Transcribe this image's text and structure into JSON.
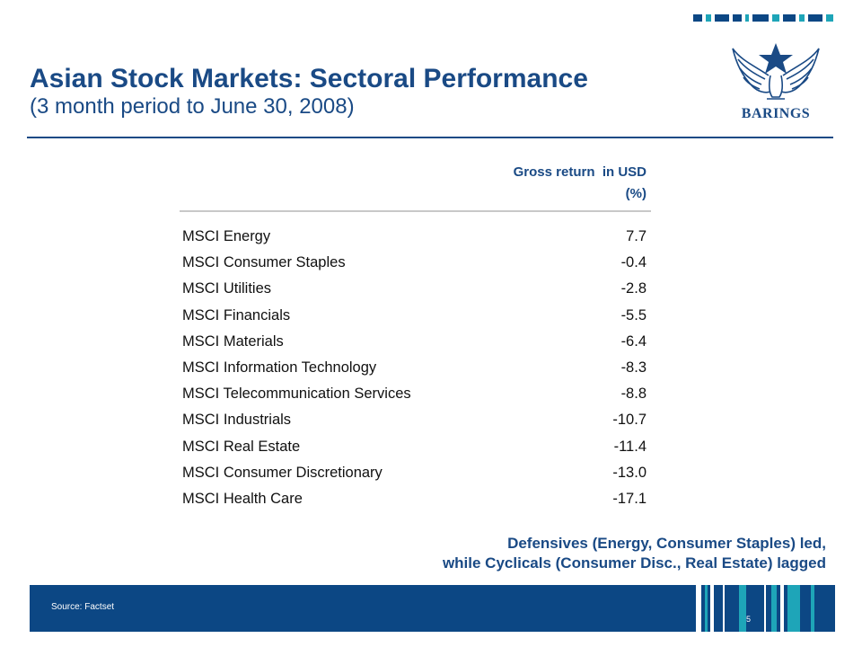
{
  "slide": {
    "title": "Asian Stock Markets: Sectoral Performance",
    "subtitle": "(3 month period to June 30, 2008)",
    "page_number": "5"
  },
  "logo": {
    "icon": "barings-eagle-star-crest-icon",
    "text": "BARINGS"
  },
  "table": {
    "header_line1": "Gross return  in USD",
    "header_line2": "(%)",
    "rows": [
      {
        "sector": "MSCI Energy",
        "value": "7.7"
      },
      {
        "sector": "MSCI Consumer Staples",
        "value": "-0.4"
      },
      {
        "sector": "MSCI Utilities",
        "value": "-2.8"
      },
      {
        "sector": "MSCI Financials",
        "value": "-5.5"
      },
      {
        "sector": "MSCI Materials",
        "value": "-6.4"
      },
      {
        "sector": "MSCI Information Technology",
        "value": "-8.3"
      },
      {
        "sector": "MSCI Telecommunication Services",
        "value": "-8.8"
      },
      {
        "sector": "MSCI Industrials",
        "value": "-10.7"
      },
      {
        "sector": "MSCI Real Estate",
        "value": "-11.4"
      },
      {
        "sector": "MSCI Consumer Discretionary",
        "value": "-13.0"
      },
      {
        "sector": "MSCI Health Care",
        "value": "-17.1"
      }
    ]
  },
  "conclusion": {
    "line1": "Defensives (Energy, Consumer Staples) led,",
    "line2": "while Cyclicals (Consumer Disc., Real Estate) lagged"
  },
  "footer": {
    "source": "Source: Factset"
  },
  "colors": {
    "brand_navy": "#0c4784",
    "title_blue": "#1a4a85",
    "accent_teal": "#1ea5b8"
  }
}
